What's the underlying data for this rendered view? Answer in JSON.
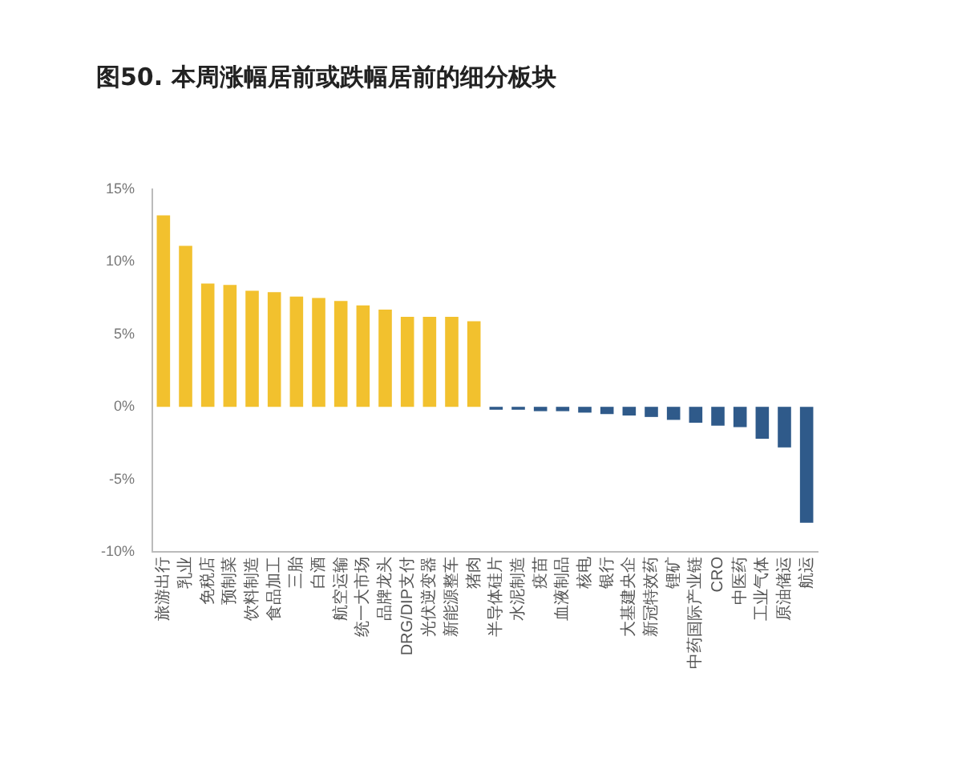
{
  "chart_data": {
    "type": "bar",
    "title": "图50. 本周涨幅居前或跌幅居前的细分板块",
    "categories": [
      "旅游出行",
      "乳业",
      "免税店",
      "预制菜",
      "饮料制造",
      "食品加工",
      "三胎",
      "白酒",
      "航空运输",
      "统一大市场",
      "品牌龙头",
      "DRG/DIP支付",
      "光伏逆变器",
      "新能源整车",
      "猪肉",
      "半导体硅片",
      "水泥制造",
      "疫苗",
      "血液制品",
      "核电",
      "银行",
      "大基建央企",
      "新冠特效药",
      "锂矿",
      "中药国际产业链",
      "CRO",
      "中医药",
      "工业气体",
      "原油储运",
      "航运"
    ],
    "values": [
      13.2,
      11.1,
      8.5,
      8.4,
      8.0,
      7.9,
      7.6,
      7.5,
      7.3,
      7.0,
      6.7,
      6.2,
      6.2,
      6.2,
      5.9,
      -0.2,
      -0.2,
      -0.3,
      -0.3,
      -0.4,
      -0.5,
      -0.6,
      -0.7,
      -0.9,
      -1.1,
      -1.3,
      -1.4,
      -2.2,
      -2.8,
      -8.0
    ],
    "colors": [
      "#f2c12e",
      "#f2c12e",
      "#f2c12e",
      "#f2c12e",
      "#f2c12e",
      "#f2c12e",
      "#f2c12e",
      "#f2c12e",
      "#f2c12e",
      "#f2c12e",
      "#f2c12e",
      "#f2c12e",
      "#f2c12e",
      "#f2c12e",
      "#f2c12e",
      "#2f5a8a",
      "#2f5a8a",
      "#2f5a8a",
      "#2f5a8a",
      "#2f5a8a",
      "#2f5a8a",
      "#2f5a8a",
      "#2f5a8a",
      "#2f5a8a",
      "#2f5a8a",
      "#2f5a8a",
      "#2f5a8a",
      "#2f5a8a",
      "#2f5a8a",
      "#2f5a8a"
    ],
    "ylim": [
      -10,
      15
    ],
    "yticks": [
      {
        "value": -10,
        "label": "-10%"
      },
      {
        "value": -5,
        "label": "-5%"
      },
      {
        "value": 0,
        "label": "0%"
      },
      {
        "value": 5,
        "label": "5%"
      },
      {
        "value": 10,
        "label": "10%"
      },
      {
        "value": 15,
        "label": "15%"
      }
    ],
    "grid": false,
    "legend": false
  }
}
